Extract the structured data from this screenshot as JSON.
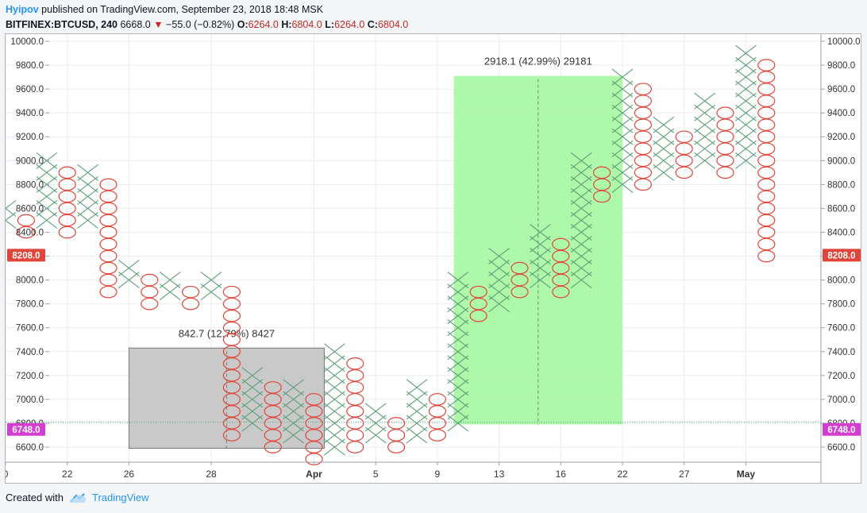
{
  "header": {
    "author": "Hyipov",
    "published_text": "published on TradingView.com, September 23, 2018 18:48 MSK",
    "symbol": "BITFINEX:BTCUSD, 240",
    "price": "6668.0",
    "change": "−55.0 (−0.82%)",
    "ohlc": [
      {
        "label": "O:",
        "value": "6264.0"
      },
      {
        "label": "H:",
        "value": "6804.0"
      },
      {
        "label": "L:",
        "value": "6264.0"
      },
      {
        "label": "C:",
        "value": "6804.0"
      }
    ]
  },
  "footer": {
    "created_with": "Created with",
    "brand": "TradingView"
  },
  "colors": {
    "x_mark": "#5e9e7a",
    "o_mark": "#e0453a",
    "grid": "#e9edf1",
    "loss_box": "#c7c7c7",
    "gain_box": "#a5f7a0",
    "current_badge": "#e0453a",
    "level_badge": "#d33ed1"
  },
  "chart_data": {
    "type": "point-and-figure",
    "box_size": 100,
    "ylim": [
      6500,
      10050
    ],
    "yticks": [
      "10000.0",
      "9800.0",
      "9600.0",
      "9400.0",
      "9200.0",
      "9000.0",
      "8800.0",
      "8600.0",
      "8400.0",
      "8200.0",
      "8000.0",
      "7800.0",
      "7600.0",
      "7400.0",
      "7200.0",
      "7000.0",
      "6800.0",
      "6600.0"
    ],
    "xlabels": [
      {
        "label": "0",
        "col": 0
      },
      {
        "label": "22",
        "col": 3
      },
      {
        "label": "26",
        "col": 6
      },
      {
        "label": "28",
        "col": 10
      },
      {
        "label": "Apr",
        "col": 15
      },
      {
        "label": "5",
        "col": 18
      },
      {
        "label": "9",
        "col": 21
      },
      {
        "label": "13",
        "col": 24
      },
      {
        "label": "16",
        "col": 27
      },
      {
        "label": "22",
        "col": 30
      },
      {
        "label": "27",
        "col": 33
      },
      {
        "label": "May",
        "col": 36
      }
    ],
    "columns": [
      {
        "type": "X",
        "low": 8500,
        "high": 8600
      },
      {
        "type": "O",
        "low": 8400,
        "high": 8500
      },
      {
        "type": "X",
        "low": 8500,
        "high": 9000
      },
      {
        "type": "O",
        "low": 8400,
        "high": 8900
      },
      {
        "type": "X",
        "low": 8500,
        "high": 8900
      },
      {
        "type": "O",
        "low": 7900,
        "high": 8800
      },
      {
        "type": "X",
        "low": 8000,
        "high": 8100
      },
      {
        "type": "O",
        "low": 7800,
        "high": 8000
      },
      {
        "type": "X",
        "low": 7900,
        "high": 8000
      },
      {
        "type": "O",
        "low": 7800,
        "high": 7900
      },
      {
        "type": "X",
        "low": 7900,
        "high": 8000
      },
      {
        "type": "O",
        "low": 6700,
        "high": 7900
      },
      {
        "type": "X",
        "low": 6800,
        "high": 7200
      },
      {
        "type": "O",
        "low": 6600,
        "high": 7100
      },
      {
        "type": "X",
        "low": 6700,
        "high": 7100
      },
      {
        "type": "O",
        "low": 6500,
        "high": 7000
      },
      {
        "type": "X",
        "low": 6600,
        "high": 7400
      },
      {
        "type": "O",
        "low": 6600,
        "high": 7300
      },
      {
        "type": "X",
        "low": 6700,
        "high": 6900
      },
      {
        "type": "O",
        "low": 6600,
        "high": 6800
      },
      {
        "type": "X",
        "low": 6700,
        "high": 7100
      },
      {
        "type": "O",
        "low": 6700,
        "high": 7000
      },
      {
        "type": "X",
        "low": 6800,
        "high": 8000
      },
      {
        "type": "O",
        "low": 7700,
        "high": 7900
      },
      {
        "type": "X",
        "low": 7800,
        "high": 8200
      },
      {
        "type": "O",
        "low": 7900,
        "high": 8100
      },
      {
        "type": "X",
        "low": 8000,
        "high": 8400
      },
      {
        "type": "O",
        "low": 7900,
        "high": 8300
      },
      {
        "type": "X",
        "low": 8000,
        "high": 9000
      },
      {
        "type": "O",
        "low": 8700,
        "high": 8900
      },
      {
        "type": "X",
        "low": 8800,
        "high": 9700
      },
      {
        "type": "O",
        "low": 8800,
        "high": 9600
      },
      {
        "type": "X",
        "low": 8900,
        "high": 9300
      },
      {
        "type": "O",
        "low": 8900,
        "high": 9200
      },
      {
        "type": "X",
        "low": 9000,
        "high": 9500
      },
      {
        "type": "O",
        "low": 8900,
        "high": 9400
      },
      {
        "type": "X",
        "low": 9000,
        "high": 9900
      },
      {
        "type": "O",
        "low": 8200,
        "high": 9800
      }
    ],
    "annotations": [
      {
        "label": "842.7 (12.79%) 8427",
        "col_start": 6,
        "col_end": 15.5,
        "price_low": 6590,
        "price_high": 7430,
        "fill": "loss"
      },
      {
        "label": "2918.1 (42.99%) 29181",
        "col_start": 21.8,
        "col_end": 30,
        "price_low": 6790,
        "price_high": 9710,
        "fill": "gain"
      }
    ],
    "price_badges": [
      {
        "label": "8208.0",
        "price": 8208,
        "color": "current"
      },
      {
        "label": "6748.0",
        "price": 6748,
        "color": "level"
      }
    ],
    "horizontal_line": 6810
  }
}
